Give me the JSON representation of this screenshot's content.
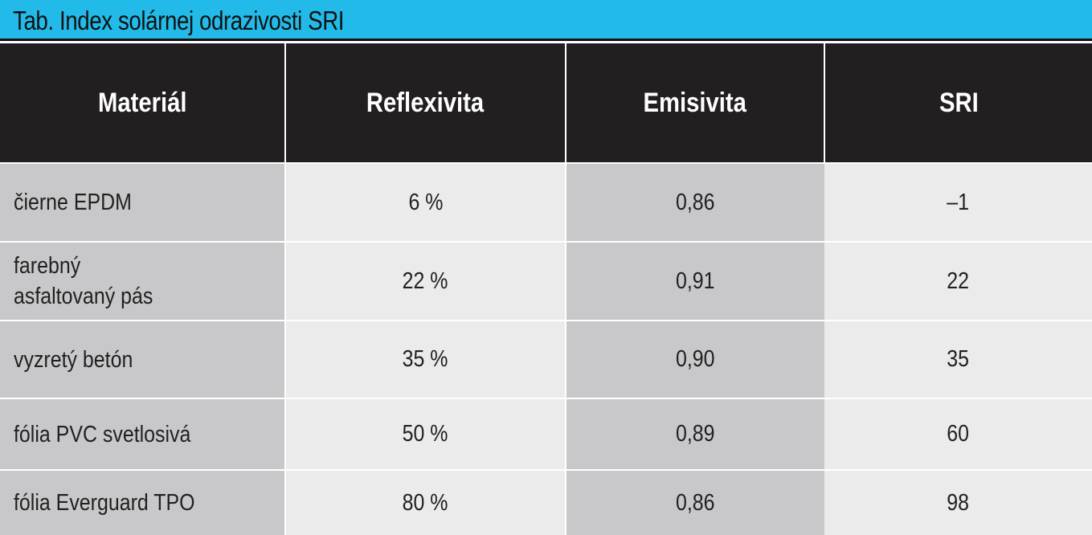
{
  "title": "Tab. Index solárnej odrazivosti SRI",
  "table": {
    "headers": [
      "Materiál",
      "Reflexivita",
      "Emisivita",
      "SRI"
    ],
    "rows": [
      {
        "material": [
          "čierne EPDM"
        ],
        "reflexivita": "6 %",
        "emisivita": "0,86",
        "sri": "–1"
      },
      {
        "material": [
          "farebný",
          "asfaltovaný pás"
        ],
        "reflexivita": "22 %",
        "emisivita": "0,91",
        "sri": "22"
      },
      {
        "material": [
          "vyzretý betón"
        ],
        "reflexivita": "35 %",
        "emisivita": "0,90",
        "sri": "35"
      },
      {
        "material": [
          "fólia PVC svetlosivá"
        ],
        "reflexivita": "50 %",
        "emisivita": "0,89",
        "sri": "60"
      },
      {
        "material": [
          "fólia Everguard TPO"
        ],
        "reflexivita": "80 %",
        "emisivita": "0,86",
        "sri": "98"
      }
    ]
  },
  "colors": {
    "title_bar": "#22bbe9",
    "header_bg": "#231f20",
    "header_text": "#ffffff",
    "cell_dark": "#c8c8ca",
    "cell_light": "#ebebec",
    "text": "#231f20"
  }
}
